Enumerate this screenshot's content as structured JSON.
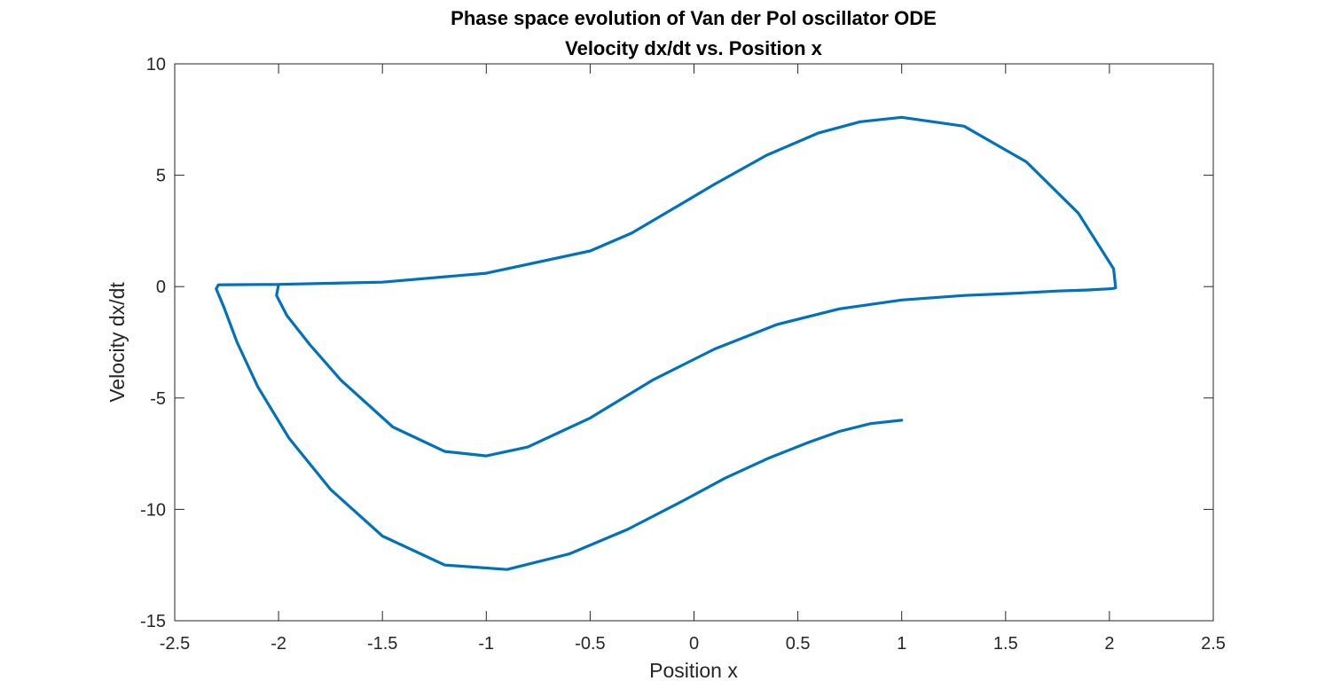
{
  "chart_data": {
    "type": "line",
    "title": [
      "Phase space evolution of Van der Pol oscillator ODE",
      "Velocity dx/dt vs. Position x"
    ],
    "xlabel": "Position x",
    "ylabel": "Velocity dx/dt",
    "xlim": [
      -2.5,
      2.5
    ],
    "ylim": [
      -15,
      10
    ],
    "xticks": [
      -2.5,
      -2,
      -1.5,
      -1,
      -0.5,
      0,
      0.5,
      1,
      1.5,
      2,
      2.5
    ],
    "xtick_labels": [
      "-2.5",
      "-2",
      "-1.5",
      "-1",
      "-0.5",
      "0",
      "0.5",
      "1",
      "1.5",
      "2",
      "2.5"
    ],
    "yticks": [
      -15,
      -10,
      -5,
      0,
      5,
      10
    ],
    "ytick_labels": [
      "-15",
      "-10",
      "-5",
      "0",
      "5",
      "10"
    ],
    "grid": false,
    "box": true,
    "colors": {
      "line": "#0072BD",
      "axes": "#262626",
      "background": "#ffffff"
    },
    "series": [
      {
        "x": [
          1.0,
          0.85,
          0.7,
          0.55,
          0.36,
          0.15,
          -0.05,
          -0.32,
          -0.6,
          -0.9,
          -1.2,
          -1.5,
          -1.75,
          -1.95,
          -2.1,
          -2.2,
          -2.26,
          -2.3,
          -2.29,
          -2.0,
          -1.5,
          -1.0,
          -0.5,
          -0.3,
          -0.1,
          0.1,
          0.35,
          0.6,
          0.8,
          1.0,
          1.3,
          1.6,
          1.85,
          2.02,
          2.03,
          2.02,
          2.0,
          1.9,
          1.75,
          1.55,
          1.3,
          1.0,
          0.7,
          0.4,
          0.1,
          -0.2,
          -0.5,
          -0.8,
          -1.0,
          -1.2,
          -1.45,
          -1.7,
          -1.85,
          -1.96,
          -2.01,
          -2.0
        ],
        "y": [
          -6.0,
          -6.15,
          -6.5,
          -7.0,
          -7.7,
          -8.6,
          -9.6,
          -10.9,
          -12.0,
          -12.7,
          -12.5,
          -11.2,
          -9.1,
          -6.8,
          -4.5,
          -2.5,
          -1.0,
          -0.1,
          0.08,
          0.1,
          0.2,
          0.6,
          1.6,
          2.4,
          3.5,
          4.6,
          5.9,
          6.9,
          7.4,
          7.6,
          7.2,
          5.6,
          3.3,
          0.8,
          -0.05,
          -0.08,
          -0.1,
          -0.15,
          -0.2,
          -0.3,
          -0.4,
          -0.6,
          -1.0,
          -1.7,
          -2.8,
          -4.2,
          -5.9,
          -7.2,
          -7.6,
          -7.4,
          -6.3,
          -4.2,
          -2.6,
          -1.3,
          -0.4,
          0.1
        ]
      }
    ]
  }
}
